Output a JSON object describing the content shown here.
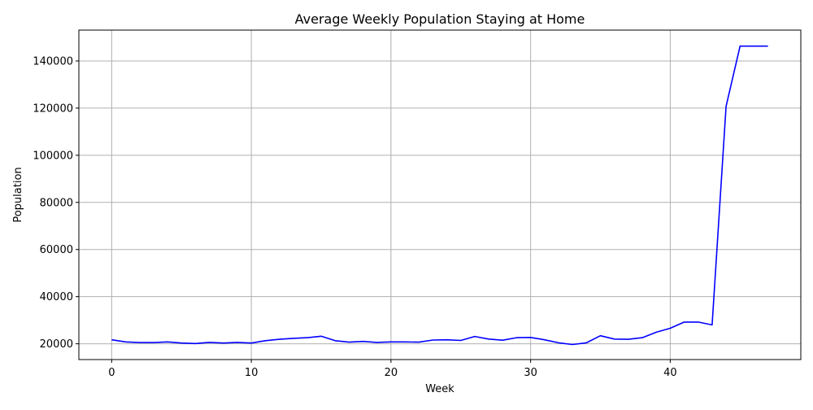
{
  "chart_data": {
    "type": "line",
    "title": "Average Weekly Population Staying at Home",
    "xlabel": "Week",
    "ylabel": "Population",
    "xlim": [
      -2.35,
      49.35
    ],
    "ylim": [
      13300,
      153100
    ],
    "xticks": [
      0,
      10,
      20,
      30,
      40
    ],
    "yticks": [
      20000,
      40000,
      60000,
      80000,
      100000,
      120000,
      140000
    ],
    "grid": true,
    "series": [
      {
        "color": "#0000ff",
        "x": [
          0,
          1,
          2,
          3,
          4,
          5,
          6,
          7,
          8,
          9,
          10,
          11,
          12,
          13,
          14,
          15,
          16,
          17,
          18,
          19,
          20,
          21,
          22,
          23,
          24,
          25,
          26,
          27,
          28,
          29,
          30,
          31,
          32,
          33,
          34,
          35,
          36,
          37,
          38,
          39,
          40,
          41,
          42,
          43,
          44,
          45,
          46,
          47
        ],
        "values": [
          21700,
          20800,
          20500,
          20500,
          20800,
          20300,
          20100,
          20600,
          20300,
          20600,
          20300,
          21300,
          21900,
          22300,
          22600,
          23200,
          21300,
          20700,
          21000,
          20600,
          20800,
          20800,
          20700,
          21600,
          21700,
          21400,
          23100,
          22000,
          21500,
          22600,
          22700,
          21700,
          20400,
          19700,
          20400,
          23400,
          22000,
          21900,
          22600,
          24900,
          26600,
          29200,
          29200,
          28000,
          120800,
          146300,
          146300,
          146300
        ]
      }
    ]
  }
}
